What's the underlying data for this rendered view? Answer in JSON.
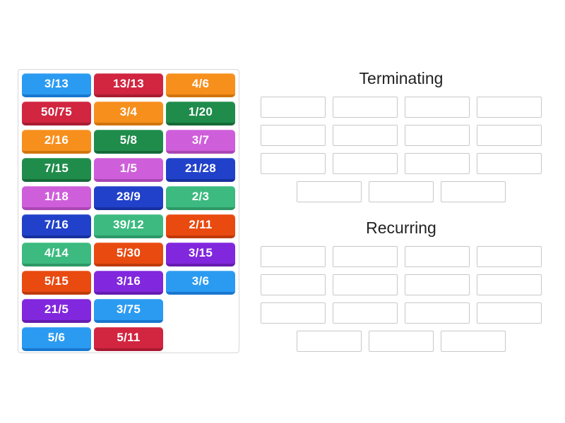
{
  "page": {
    "background_color": "#ffffff",
    "text_color": "#222222"
  },
  "board": {
    "columns": 3,
    "tiles": [
      {
        "label": "3/13",
        "color": "blue"
      },
      {
        "label": "13/13",
        "color": "crimson"
      },
      {
        "label": "4/6",
        "color": "orange"
      },
      {
        "label": "50/75",
        "color": "crimson"
      },
      {
        "label": "3/4",
        "color": "orange"
      },
      {
        "label": "1/20",
        "color": "green"
      },
      {
        "label": "2/16",
        "color": "orange"
      },
      {
        "label": "5/8",
        "color": "green"
      },
      {
        "label": "3/7",
        "color": "orchid"
      },
      {
        "label": "7/15",
        "color": "green"
      },
      {
        "label": "1/5",
        "color": "orchid"
      },
      {
        "label": "21/28",
        "color": "royal"
      },
      {
        "label": "1/18",
        "color": "orchid"
      },
      {
        "label": "28/9",
        "color": "royal"
      },
      {
        "label": "2/3",
        "color": "seagreen"
      },
      {
        "label": "7/16",
        "color": "royal"
      },
      {
        "label": "39/12",
        "color": "seagreen"
      },
      {
        "label": "2/11",
        "color": "orangered"
      },
      {
        "label": "4/14",
        "color": "seagreen"
      },
      {
        "label": "5/30",
        "color": "orangered"
      },
      {
        "label": "3/15",
        "color": "violet"
      },
      {
        "label": "5/15",
        "color": "orangered"
      },
      {
        "label": "3/16",
        "color": "violet"
      },
      {
        "label": "3/6",
        "color": "blue"
      },
      {
        "label": "21/5",
        "color": "violet"
      },
      {
        "label": "3/75",
        "color": "blue"
      },
      null,
      {
        "label": "5/6",
        "color": "blue"
      },
      {
        "label": "5/11",
        "color": "crimson"
      },
      null
    ]
  },
  "palette": {
    "blue": {
      "bg": "#2b9bf2",
      "edge": "#1878cf"
    },
    "crimson": {
      "bg": "#d12540",
      "edge": "#a81c32"
    },
    "orange": {
      "bg": "#f78f1d",
      "edge": "#d1750d"
    },
    "green": {
      "bg": "#1f8c4b",
      "edge": "#156b38"
    },
    "orchid": {
      "bg": "#cf5edb",
      "edge": "#a947b4"
    },
    "royal": {
      "bg": "#2141ca",
      "edge": "#17309e"
    },
    "seagreen": {
      "bg": "#3cba80",
      "edge": "#2d9866"
    },
    "orangered": {
      "bg": "#e94a10",
      "edge": "#bf3a0a"
    },
    "violet": {
      "bg": "#8127dd",
      "edge": "#651cb0"
    }
  },
  "groups": [
    {
      "title": "Terminating",
      "rows": [
        4,
        4,
        4,
        3
      ]
    },
    {
      "title": "Recurring",
      "rows": [
        4,
        4,
        4,
        3
      ]
    }
  ]
}
